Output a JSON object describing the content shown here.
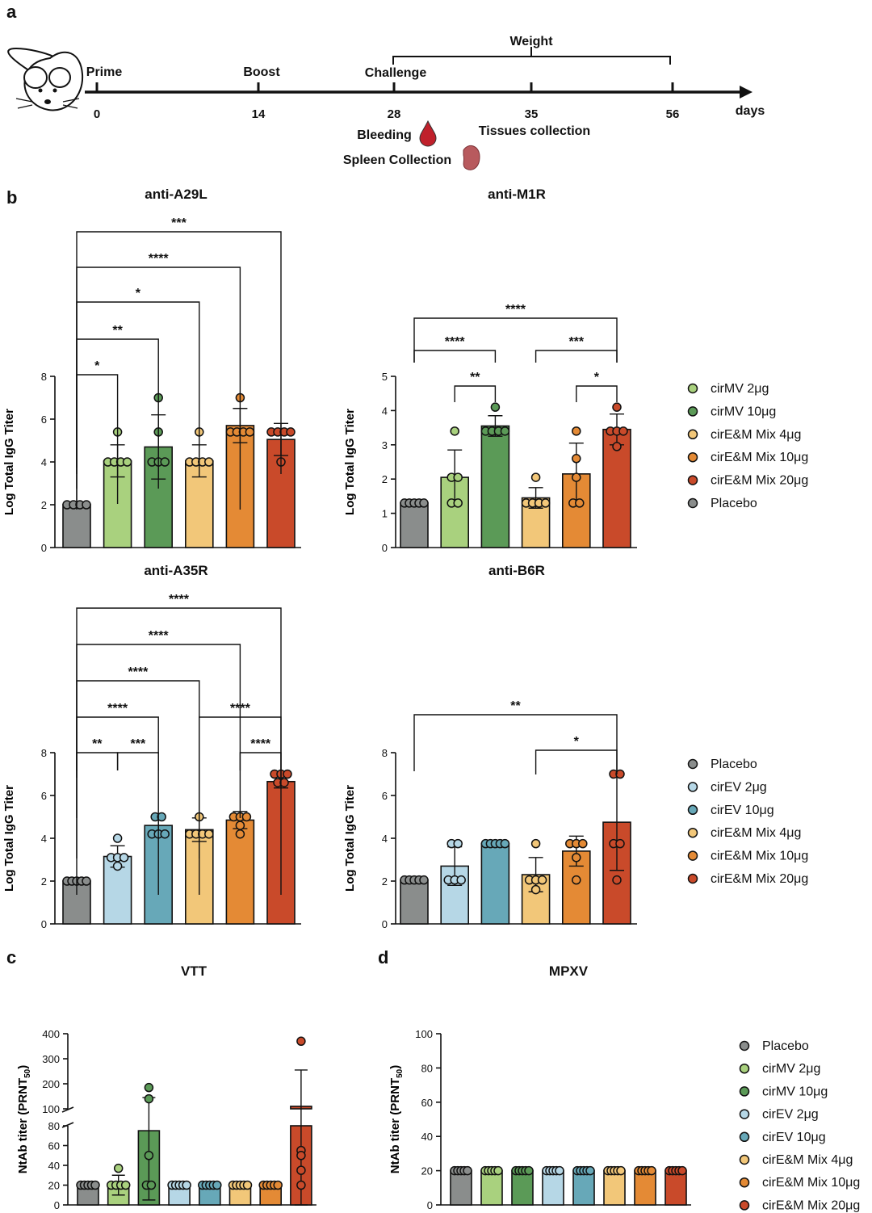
{
  "panels": {
    "a": "a",
    "b": "b",
    "c": "c",
    "d": "d"
  },
  "timeline": {
    "events": [
      {
        "label": "Prime",
        "day": "0"
      },
      {
        "label": "Boost",
        "day": "14"
      },
      {
        "label": "Challenge",
        "day": "28"
      },
      {
        "label": "",
        "day": "35"
      },
      {
        "label": "",
        "day": "56"
      }
    ],
    "unit": "days",
    "weight_label": "Weight",
    "bleeding_label": "Bleeding",
    "tissues_label": "Tissues collection",
    "spleen_label": "Spleen Collection"
  },
  "colors": {
    "Placebo": "#8a8d8c",
    "cirMV 2μg": "#a9d17e",
    "cirMV 10μg": "#5b9a57",
    "cirEV 2μg": "#b6d7e6",
    "cirEV 10μg": "#67a8b8",
    "cirE&M Mix 4μg": "#f2c779",
    "cirE&M Mix 10μg": "#e48a35",
    "cirE&M Mix 20μg": "#c94a2a"
  },
  "legends": {
    "b_top": [
      "cirMV 2μg",
      "cirMV 10μg",
      "cirE&M Mix 4μg",
      "cirE&M Mix 10μg",
      "cirE&M Mix 20μg",
      "Placebo"
    ],
    "b_bottom": [
      "Placebo",
      "cirEV 2μg",
      "cirEV 10μg",
      "cirE&M Mix 4μg",
      "cirE&M Mix 10μg",
      "cirE&M Mix 20μg"
    ],
    "cd": [
      "Placebo",
      "cirMV 2μg",
      "cirMV 10μg",
      "cirEV 2μg",
      "cirEV 10μg",
      "cirE&M Mix 4μg",
      "cirE&M Mix 10μg",
      "cirE&M Mix 20μg"
    ]
  },
  "chart_data": [
    {
      "id": "anti-A29L",
      "type": "bar",
      "title": "anti-A29L",
      "ylabel": "Log Total IgG Titer",
      "ylim": [
        0,
        8
      ],
      "yticks": [
        0,
        2,
        4,
        6,
        8
      ],
      "groups": [
        "Placebo",
        "cirMV 2μg",
        "cirMV 10μg",
        "cirE&M Mix 4μg",
        "cirE&M Mix 10μg",
        "cirE&M Mix 20μg"
      ],
      "values": [
        2.0,
        4.05,
        4.7,
        4.05,
        5.7,
        5.05
      ],
      "errors": [
        0.0,
        0.75,
        1.5,
        0.75,
        0.8,
        0.75
      ],
      "points": [
        [
          2,
          2,
          2,
          2
        ],
        [
          5.4,
          4,
          4,
          4,
          4
        ],
        [
          7,
          5.4,
          4,
          4,
          4
        ],
        [
          5.4,
          4,
          4,
          4,
          4
        ],
        [
          7,
          5.4,
          5.4,
          5.4,
          5.4
        ],
        [
          5.4,
          5.4,
          5.4,
          5.4,
          4
        ]
      ],
      "significance": [
        {
          "from": 0,
          "to": 1,
          "label": "*"
        },
        {
          "from": 0,
          "to": 2,
          "label": "**"
        },
        {
          "from": 0,
          "to": 3,
          "label": "*"
        },
        {
          "from": 0,
          "to": 4,
          "label": "****"
        },
        {
          "from": 0,
          "to": 5,
          "label": "***"
        }
      ]
    },
    {
      "id": "anti-M1R",
      "type": "bar",
      "title": "anti-M1R",
      "ylabel": "Log Total IgG Titer",
      "ylim": [
        0,
        5
      ],
      "yticks": [
        0,
        1,
        2,
        3,
        4,
        5
      ],
      "groups": [
        "Placebo",
        "cirMV 2μg",
        "cirMV 10μg",
        "cirE&M Mix 4μg",
        "cirE&M Mix 10μg",
        "cirE&M Mix 20μg"
      ],
      "values": [
        1.3,
        2.05,
        3.55,
        1.45,
        2.15,
        3.45
      ],
      "errors": [
        0.0,
        0.8,
        0.3,
        0.3,
        0.9,
        0.45
      ],
      "points": [
        [
          1.3,
          1.3,
          1.3,
          1.3,
          1.3
        ],
        [
          3.4,
          2.05,
          2.05,
          1.3,
          1.3
        ],
        [
          4.1,
          3.4,
          3.4,
          3.4,
          3.4
        ],
        [
          2.05,
          1.3,
          1.3,
          1.3,
          1.3
        ],
        [
          3.4,
          2.6,
          2.05,
          1.3,
          1.3
        ],
        [
          4.1,
          3.4,
          3.4,
          3.4,
          2.95
        ]
      ],
      "significance": [
        {
          "from": 0,
          "to": 5,
          "label": "****"
        },
        {
          "from": 0,
          "to": 2,
          "label": "****"
        },
        {
          "from": 3,
          "to": 5,
          "label": "***"
        },
        {
          "from": 1,
          "to": 2,
          "label": "**"
        },
        {
          "from": 4,
          "to": 5,
          "label": "*"
        }
      ]
    },
    {
      "id": "anti-A35R",
      "type": "bar",
      "title": "anti-A35R",
      "ylabel": "Log Total IgG Titer",
      "ylim": [
        0,
        8
      ],
      "yticks": [
        0,
        2,
        4,
        6,
        8
      ],
      "groups": [
        "Placebo",
        "cirEV 2μg",
        "cirEV 10μg",
        "cirE&M Mix 4μg",
        "cirE&M Mix 10μg",
        "cirE&M Mix 20μg"
      ],
      "values": [
        2.0,
        3.15,
        4.6,
        4.4,
        4.85,
        6.65
      ],
      "errors": [
        0.0,
        0.5,
        0.4,
        0.55,
        0.4,
        0.3
      ],
      "points": [
        [
          2,
          2,
          2,
          2,
          2
        ],
        [
          4,
          3.1,
          3.1,
          3.1,
          2.7
        ],
        [
          5,
          5,
          4.2,
          4.2,
          4.2
        ],
        [
          5,
          4.2,
          4.2,
          4.2,
          4.2
        ],
        [
          5,
          5,
          5,
          4.6,
          4.2
        ],
        [
          7,
          7,
          7,
          6.6,
          6.6
        ]
      ],
      "significance": [
        {
          "from": 0,
          "to": 5,
          "label": "****"
        },
        {
          "from": 0,
          "to": 4,
          "label": "****"
        },
        {
          "from": 0,
          "to": 3,
          "label": "****"
        },
        {
          "from": 0,
          "to": 2,
          "label": "****"
        },
        {
          "from": 3,
          "to": 5,
          "label": "****"
        },
        {
          "from": 0,
          "to": 1,
          "label": "**"
        },
        {
          "from": 1,
          "to": 2,
          "label": "***"
        },
        {
          "from": 4,
          "to": 5,
          "label": "****"
        }
      ]
    },
    {
      "id": "anti-B6R",
      "type": "bar",
      "title": "anti-B6R",
      "ylabel": "Log Total IgG Titer",
      "ylim": [
        0,
        8
      ],
      "yticks": [
        0,
        2,
        4,
        6,
        8
      ],
      "groups": [
        "Placebo",
        "cirEV 2μg",
        "cirEV 10μg",
        "cirE&M Mix 4μg",
        "cirE&M Mix 10μg",
        "cirE&M Mix 20μg"
      ],
      "values": [
        2.05,
        2.7,
        3.75,
        2.3,
        3.4,
        4.75
      ],
      "errors": [
        0.0,
        0.9,
        0.0,
        0.8,
        0.7,
        2.25
      ],
      "points": [
        [
          2.05,
          2.05,
          2.05,
          2.05,
          2.05
        ],
        [
          3.75,
          3.75,
          2.05,
          2.05,
          2.05
        ],
        [
          3.75,
          3.75,
          3.75,
          3.75,
          3.75
        ],
        [
          3.75,
          2.05,
          2.05,
          2.05,
          1.6
        ],
        [
          3.75,
          3.75,
          3.75,
          3.1,
          2.05
        ],
        [
          7,
          7,
          3.75,
          3.75,
          2.05
        ]
      ],
      "significance": [
        {
          "from": 0,
          "to": 5,
          "label": "**"
        },
        {
          "from": 3,
          "to": 5,
          "label": "*"
        }
      ]
    },
    {
      "id": "VTT",
      "type": "bar",
      "title": "VTT",
      "ylabel": "NtAb titer (PRNT",
      "ylabel_sub": "50",
      "ylabel_end": ")",
      "y_axis_break": {
        "lower": [
          0,
          80
        ],
        "upper": [
          100,
          400
        ]
      },
      "yticks_lower": [
        0,
        20,
        40,
        60,
        80
      ],
      "yticks_upper": [
        100,
        200,
        300,
        400
      ],
      "groups": [
        "Placebo",
        "cirMV 2μg",
        "cirMV 10μg",
        "cirEV 2μg",
        "cirEV 10μg",
        "cirE&M Mix 4μg",
        "cirE&M Mix 10μg",
        "cirE&M Mix 20μg"
      ],
      "values": [
        20,
        20,
        75,
        20,
        20,
        20,
        20,
        110
      ],
      "errors": [
        0,
        10,
        70,
        0,
        0,
        0,
        0,
        145
      ],
      "points": [
        [
          20,
          20,
          20,
          20,
          20
        ],
        [
          37,
          20,
          20,
          20,
          20
        ],
        [
          185,
          140,
          50,
          20,
          20
        ],
        [
          20,
          20,
          20,
          20,
          20
        ],
        [
          20,
          20,
          20,
          20,
          20
        ],
        [
          20,
          20,
          20,
          20,
          20
        ],
        [
          20,
          20,
          20,
          20,
          20
        ],
        [
          370,
          55,
          50,
          35,
          20
        ]
      ]
    },
    {
      "id": "MPXV",
      "type": "bar",
      "title": "MPXV",
      "ylabel": "NtAb titer (PRNT",
      "ylabel_sub": "50",
      "ylabel_end": ")",
      "ylim": [
        0,
        100
      ],
      "yticks": [
        0,
        20,
        40,
        60,
        80,
        100
      ],
      "groups": [
        "Placebo",
        "cirMV 2μg",
        "cirMV 10μg",
        "cirEV 2μg",
        "cirEV 10μg",
        "cirE&M Mix 4μg",
        "cirE&M Mix 10μg",
        "cirE&M Mix 20μg"
      ],
      "values": [
        20,
        20,
        20,
        20,
        20,
        20,
        20,
        20
      ],
      "errors": [
        0,
        0,
        0,
        0,
        0,
        0,
        0,
        0
      ],
      "points": [
        [
          20,
          20,
          20,
          20,
          20
        ],
        [
          20,
          20,
          20,
          20,
          20
        ],
        [
          20,
          20,
          20,
          20,
          20
        ],
        [
          20,
          20,
          20,
          20,
          20
        ],
        [
          20,
          20,
          20,
          20,
          20
        ],
        [
          20,
          20,
          20,
          20,
          20
        ],
        [
          20,
          20,
          20,
          20,
          20
        ],
        [
          20,
          20,
          20,
          20,
          20
        ]
      ]
    }
  ]
}
